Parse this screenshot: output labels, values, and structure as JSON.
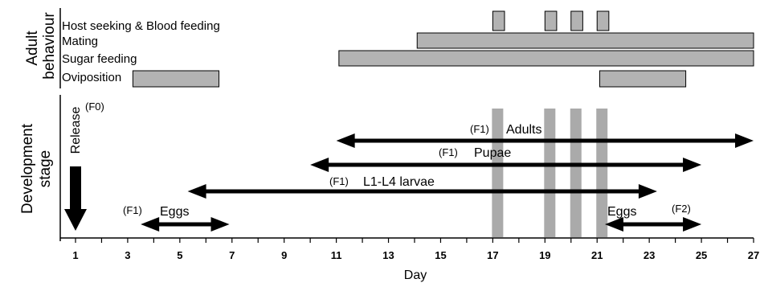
{
  "sections": {
    "adult_line1": "Adult",
    "adult_line2": "behaviour",
    "dev_line1": "Development",
    "dev_line2": "stage"
  },
  "behaviours": [
    {
      "label": "Host seeking & Blood feeding",
      "bars": [
        [
          17,
          17.45
        ],
        [
          19,
          19.45
        ],
        [
          20,
          20.45
        ],
        [
          21,
          21.45
        ]
      ]
    },
    {
      "label": "Mating",
      "bars": [
        [
          14.1,
          27
        ]
      ]
    },
    {
      "label": "Sugar feeding",
      "bars": [
        [
          11.1,
          27
        ]
      ]
    },
    {
      "label": "Oviposition",
      "bars": [
        [
          3.2,
          6.5
        ],
        [
          21.1,
          24.4
        ]
      ]
    }
  ],
  "blood_meal_days": [
    17,
    19,
    20,
    21
  ],
  "release": {
    "label": "Release",
    "gen": "(F0)",
    "day": 1
  },
  "stages": [
    {
      "gen": "(F1)",
      "label": "Adults",
      "start": 11,
      "end": 27
    },
    {
      "gen": "(F1)",
      "label": "Pupae",
      "start": 10,
      "end": 25
    },
    {
      "gen": "(F1)",
      "label": "L1-L4 larvae",
      "start": 5.3,
      "end": 23.3
    },
    {
      "gen": "(F1)",
      "label": "Eggs",
      "start": 3.5,
      "end": 6.9
    },
    {
      "gen": "(F2)",
      "label": "Eggs",
      "start": 21.3,
      "end": 25
    }
  ],
  "axis": {
    "title": "Day",
    "min": 1,
    "max": 27,
    "tick_labels": [
      "1",
      "3",
      "5",
      "7",
      "9",
      "11",
      "13",
      "15",
      "17",
      "19",
      "21",
      "23",
      "25",
      "27"
    ]
  }
}
